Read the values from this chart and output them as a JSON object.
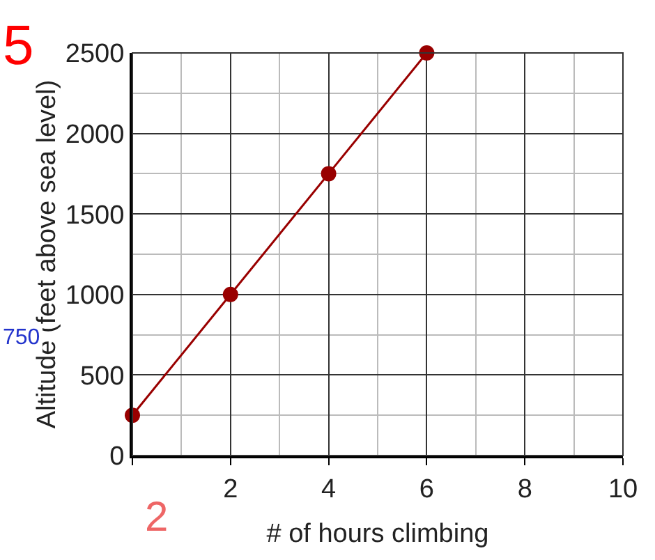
{
  "chart_data": {
    "type": "line",
    "xlabel": "# of hours climbing",
    "ylabel": "Altitude (feet above sea level)",
    "x": [
      0,
      2,
      4,
      6
    ],
    "series": [
      {
        "color": "#990000",
        "values": [
          250,
          1000,
          1750,
          2500
        ]
      }
    ],
    "marker": "circle",
    "line_style": "solid",
    "grid": true,
    "legend": false,
    "xlim": [
      0,
      10
    ],
    "ylim": [
      0,
      2500
    ],
    "xticks": [
      {
        "value": 0,
        "label": null
      },
      2,
      4,
      6,
      8,
      10
    ],
    "yticks": [
      0,
      500,
      1000,
      1500,
      2000,
      2500
    ],
    "annotations": [
      "5",
      "750",
      "2"
    ]
  }
}
